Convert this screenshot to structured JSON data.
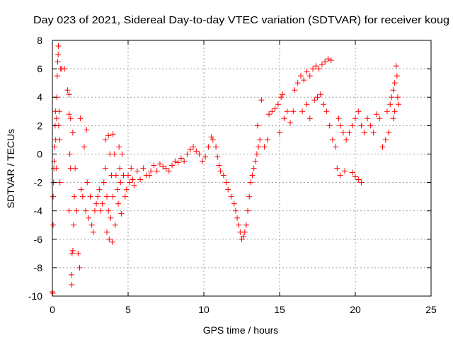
{
  "chart_data": {
    "type": "scatter",
    "title": "Day 023 of 2021, Sidereal Day-to-day VTEC variation (SDTVAR) for receiver koug",
    "xlabel": "GPS time / hours",
    "ylabel": "SDTVAR / TECUs",
    "xlim": [
      0,
      25
    ],
    "ylim": [
      -10,
      8
    ],
    "xticks": [
      0,
      5,
      10,
      15,
      20,
      25
    ],
    "yticks": [
      -10,
      -8,
      -6,
      -4,
      -2,
      0,
      2,
      4,
      6,
      8
    ],
    "grid": true,
    "legend": "none",
    "marker": "+",
    "series": [
      {
        "name": "koug",
        "color": "#ff0000",
        "points": [
          [
            0.0,
            -9.7
          ],
          [
            0.02,
            -9.8
          ],
          [
            0.05,
            -5.0
          ],
          [
            0.05,
            -3.0
          ],
          [
            0.08,
            -2.0
          ],
          [
            0.1,
            -1.0
          ],
          [
            0.12,
            -0.5
          ],
          [
            0.15,
            0.5
          ],
          [
            0.18,
            2.0
          ],
          [
            0.2,
            3.0
          ],
          [
            0.22,
            1.0
          ],
          [
            0.25,
            -1.0
          ],
          [
            0.28,
            2.5
          ],
          [
            0.3,
            4.0
          ],
          [
            0.32,
            5.5
          ],
          [
            0.35,
            6.5
          ],
          [
            0.38,
            7.0
          ],
          [
            0.4,
            7.6
          ],
          [
            0.42,
            2.0
          ],
          [
            0.45,
            3.0
          ],
          [
            0.48,
            1.0
          ],
          [
            0.5,
            -2.0
          ],
          [
            0.55,
            6.0
          ],
          [
            0.62,
            6.0
          ],
          [
            0.8,
            6.0
          ],
          [
            1.0,
            4.5
          ],
          [
            1.1,
            4.2
          ],
          [
            1.1,
            2.8
          ],
          [
            1.1,
            -4.0
          ],
          [
            1.15,
            0.0
          ],
          [
            1.2,
            2.5
          ],
          [
            1.2,
            -1.0
          ],
          [
            1.25,
            -8.5
          ],
          [
            1.28,
            -9.2
          ],
          [
            1.3,
            -7.0
          ],
          [
            1.35,
            -6.8
          ],
          [
            1.35,
            1.5
          ],
          [
            1.4,
            -5.0
          ],
          [
            1.45,
            -3.0
          ],
          [
            1.5,
            -1.0
          ],
          [
            1.6,
            -4.0
          ],
          [
            1.7,
            -7.0
          ],
          [
            1.8,
            -8.0
          ],
          [
            1.85,
            2.5
          ],
          [
            1.9,
            -2.5
          ],
          [
            2.0,
            -3.0
          ],
          [
            2.1,
            0.5
          ],
          [
            2.2,
            -4.0
          ],
          [
            2.25,
            1.7
          ],
          [
            2.3,
            -2.0
          ],
          [
            2.4,
            -4.5
          ],
          [
            2.5,
            -3.0
          ],
          [
            2.6,
            -5.0
          ],
          [
            2.7,
            -5.5
          ],
          [
            2.8,
            -4.0
          ],
          [
            2.9,
            -3.5
          ],
          [
            3.0,
            -3.0
          ],
          [
            3.1,
            -2.5
          ],
          [
            3.2,
            -4.0
          ],
          [
            3.3,
            -3.5
          ],
          [
            3.4,
            -2.0
          ],
          [
            3.5,
            -1.0
          ],
          [
            3.5,
            1.0
          ],
          [
            3.6,
            -3.0
          ],
          [
            3.6,
            -5.5
          ],
          [
            3.7,
            1.3
          ],
          [
            3.7,
            -4.0
          ],
          [
            3.75,
            -6.0
          ],
          [
            3.8,
            0.0
          ],
          [
            3.85,
            -4.5
          ],
          [
            3.9,
            -1.5
          ],
          [
            3.95,
            -6.2
          ],
          [
            4.0,
            1.4
          ],
          [
            4.0,
            -3.0
          ],
          [
            4.1,
            0.0
          ],
          [
            4.15,
            -5.0
          ],
          [
            4.2,
            -1.5
          ],
          [
            4.3,
            -2.5
          ],
          [
            4.35,
            -3.5
          ],
          [
            4.4,
            0.5
          ],
          [
            4.45,
            -1.0
          ],
          [
            4.5,
            -2.0
          ],
          [
            4.55,
            -4.2
          ],
          [
            4.6,
            0.0
          ],
          [
            4.7,
            -1.5
          ],
          [
            4.8,
            -3.0
          ],
          [
            4.9,
            -2.5
          ],
          [
            5.0,
            -1.5
          ],
          [
            5.1,
            -2.0
          ],
          [
            5.2,
            -1.0
          ],
          [
            5.3,
            -1.8
          ],
          [
            5.4,
            -2.2
          ],
          [
            5.6,
            -1.2
          ],
          [
            5.8,
            -1.8
          ],
          [
            6.0,
            -1.0
          ],
          [
            6.2,
            -1.5
          ],
          [
            6.4,
            -1.5
          ],
          [
            6.5,
            -1.2
          ],
          [
            6.7,
            -0.8
          ],
          [
            6.9,
            -1.2
          ],
          [
            7.1,
            -0.7
          ],
          [
            7.3,
            -0.9
          ],
          [
            7.5,
            -1.0
          ],
          [
            7.7,
            -1.2
          ],
          [
            7.9,
            -0.8
          ],
          [
            8.1,
            -0.5
          ],
          [
            8.3,
            -0.6
          ],
          [
            8.5,
            -0.3
          ],
          [
            8.7,
            -0.5
          ],
          [
            8.9,
            0.0
          ],
          [
            9.1,
            0.3
          ],
          [
            9.3,
            0.5
          ],
          [
            9.5,
            0.2
          ],
          [
            9.7,
            0.0
          ],
          [
            9.9,
            -0.5
          ],
          [
            10.1,
            -0.2
          ],
          [
            10.3,
            0.5
          ],
          [
            10.5,
            1.2
          ],
          [
            10.6,
            1.0
          ],
          [
            10.8,
            0.5
          ],
          [
            10.9,
            -0.2
          ],
          [
            11.0,
            -0.8
          ],
          [
            11.1,
            -1.2
          ],
          [
            11.3,
            -1.5
          ],
          [
            11.5,
            -2.0
          ],
          [
            11.6,
            -2.5
          ],
          [
            11.8,
            -3.0
          ],
          [
            12.0,
            -3.5
          ],
          [
            12.1,
            -4.0
          ],
          [
            12.2,
            -4.5
          ],
          [
            12.3,
            -5.0
          ],
          [
            12.4,
            -5.5
          ],
          [
            12.5,
            -6.0
          ],
          [
            12.6,
            -5.8
          ],
          [
            12.7,
            -5.5
          ],
          [
            12.8,
            -5.0
          ],
          [
            12.9,
            -4.0
          ],
          [
            13.0,
            -3.0
          ],
          [
            13.1,
            -2.0
          ],
          [
            13.2,
            -1.5
          ],
          [
            13.3,
            -1.0
          ],
          [
            13.4,
            -0.5
          ],
          [
            13.5,
            0.0
          ],
          [
            13.55,
            2.0
          ],
          [
            13.6,
            0.5
          ],
          [
            13.7,
            1.0
          ],
          [
            13.8,
            3.8
          ],
          [
            14.0,
            0.5
          ],
          [
            14.2,
            1.0
          ],
          [
            14.3,
            2.8
          ],
          [
            14.5,
            3.0
          ],
          [
            14.7,
            3.2
          ],
          [
            14.9,
            3.5
          ],
          [
            15.0,
            1.5
          ],
          [
            15.1,
            4.0
          ],
          [
            15.2,
            4.2
          ],
          [
            15.3,
            2.5
          ],
          [
            15.5,
            3.0
          ],
          [
            15.7,
            2.2
          ],
          [
            15.9,
            3.0
          ],
          [
            16.0,
            4.5
          ],
          [
            16.2,
            5.0
          ],
          [
            16.4,
            5.5
          ],
          [
            16.6,
            5.2
          ],
          [
            16.8,
            5.8
          ],
          [
            17.0,
            5.5
          ],
          [
            17.2,
            6.0
          ],
          [
            17.4,
            6.2
          ],
          [
            17.6,
            6.0
          ],
          [
            17.8,
            6.3
          ],
          [
            18.0,
            6.5
          ],
          [
            18.2,
            6.7
          ],
          [
            18.4,
            6.6
          ],
          [
            16.5,
            3.0
          ],
          [
            16.8,
            3.5
          ],
          [
            17.0,
            2.5
          ],
          [
            17.3,
            3.8
          ],
          [
            17.5,
            4.0
          ],
          [
            17.7,
            4.2
          ],
          [
            17.9,
            3.5
          ],
          [
            18.1,
            3.0
          ],
          [
            18.3,
            2.0
          ],
          [
            18.5,
            1.0
          ],
          [
            18.7,
            0.5
          ],
          [
            18.9,
            2.5
          ],
          [
            19.0,
            2.0
          ],
          [
            19.2,
            1.5
          ],
          [
            19.4,
            1.0
          ],
          [
            19.6,
            1.5
          ],
          [
            19.8,
            2.0
          ],
          [
            18.8,
            -1.0
          ],
          [
            19.0,
            -1.5
          ],
          [
            19.3,
            -1.2
          ],
          [
            19.8,
            -1.3
          ],
          [
            20.0,
            -1.6
          ],
          [
            20.2,
            -1.8
          ],
          [
            20.4,
            -2.0
          ],
          [
            20.0,
            2.5
          ],
          [
            20.2,
            3.0
          ],
          [
            20.4,
            2.0
          ],
          [
            20.6,
            1.5
          ],
          [
            20.8,
            2.5
          ],
          [
            21.0,
            2.0
          ],
          [
            21.2,
            1.5
          ],
          [
            21.4,
            2.8
          ],
          [
            21.6,
            2.5
          ],
          [
            21.8,
            0.5
          ],
          [
            22.0,
            1.0
          ],
          [
            22.1,
            3.0
          ],
          [
            22.2,
            1.5
          ],
          [
            22.3,
            3.5
          ],
          [
            22.4,
            4.0
          ],
          [
            22.5,
            4.5
          ],
          [
            22.6,
            5.0
          ],
          [
            22.7,
            6.2
          ],
          [
            22.75,
            5.5
          ],
          [
            22.8,
            4.0
          ],
          [
            22.85,
            3.5
          ],
          [
            22.6,
            3.0
          ],
          [
            22.5,
            2.5
          ]
        ]
      }
    ]
  }
}
